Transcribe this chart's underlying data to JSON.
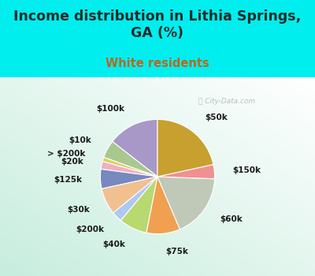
{
  "title": "Income distribution in Lithia Springs,\nGA (%)",
  "subtitle": "White residents",
  "title_color": "#2a2a2a",
  "subtitle_color": "#b86820",
  "bg_cyan": "#00eeee",
  "watermark": "ⓘ City-Data.com",
  "slices": [
    {
      "label": "$100k",
      "value": 14.5,
      "color": "#a898c8"
    },
    {
      "label": "$10k",
      "value": 5.0,
      "color": "#a8c890"
    },
    {
      "label": "> $200k",
      "value": 1.2,
      "color": "#ddd060"
    },
    {
      "label": "$20k",
      "value": 2.2,
      "color": "#f0b0c0"
    },
    {
      "label": "$125k",
      "value": 5.5,
      "color": "#7888c0"
    },
    {
      "label": "$30k",
      "value": 7.5,
      "color": "#f0c090"
    },
    {
      "label": "$200k",
      "value": 3.0,
      "color": "#b0c8f0"
    },
    {
      "label": "$40k",
      "value": 8.0,
      "color": "#b8d870"
    },
    {
      "label": "$75k",
      "value": 9.5,
      "color": "#f0a050"
    },
    {
      "label": "$60k",
      "value": 18.0,
      "color": "#c0c8b8"
    },
    {
      "label": "$150k",
      "value": 4.0,
      "color": "#f09090"
    },
    {
      "label": "$50k",
      "value": 21.6,
      "color": "#c8a030"
    }
  ],
  "label_fontsize": 7.5,
  "title_fontsize": 12.5,
  "subtitle_fontsize": 10.5,
  "startangle": 90
}
